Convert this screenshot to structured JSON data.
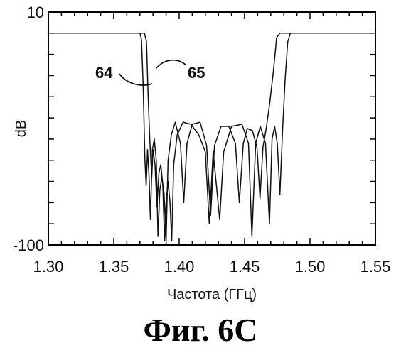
{
  "chart_data": {
    "type": "line",
    "title": "",
    "xlabel": "Частота (ГГц)",
    "ylabel": "dB",
    "xlim": [
      1.3,
      1.55
    ],
    "ylim": [
      -100,
      10
    ],
    "x_ticks": [
      "1.30",
      "1.35",
      "1.40",
      "1.45",
      "1.50",
      "1.55"
    ],
    "y_ticks": [
      "10",
      "-100"
    ],
    "grid": false,
    "annotations": [
      {
        "text": "64",
        "series": "64"
      },
      {
        "text": "65",
        "series": "65"
      }
    ],
    "series": [
      {
        "name": "64",
        "points": [
          [
            1.3,
            0
          ],
          [
            1.37,
            0
          ],
          [
            1.3712,
            -3
          ],
          [
            1.3725,
            -25
          ],
          [
            1.3738,
            -60
          ],
          [
            1.3748,
            -72
          ],
          [
            1.3758,
            -55
          ],
          [
            1.377,
            -68
          ],
          [
            1.378,
            -88
          ],
          [
            1.3795,
            -55
          ],
          [
            1.381,
            -50
          ],
          [
            1.3825,
            -60
          ],
          [
            1.3838,
            -96
          ],
          [
            1.3852,
            -74
          ],
          [
            1.3868,
            -68
          ],
          [
            1.3885,
            -76
          ],
          [
            1.39,
            -98
          ],
          [
            1.3915,
            -60
          ],
          [
            1.394,
            -48
          ],
          [
            1.397,
            -42
          ],
          [
            1.401,
            -52
          ],
          [
            1.4035,
            -80
          ],
          [
            1.406,
            -52
          ],
          [
            1.41,
            -43
          ],
          [
            1.416,
            -42
          ],
          [
            1.421,
            -53
          ],
          [
            1.424,
            -86
          ],
          [
            1.427,
            -53
          ],
          [
            1.432,
            -44
          ],
          [
            1.438,
            -44
          ],
          [
            1.443,
            -52
          ],
          [
            1.446,
            -80
          ],
          [
            1.449,
            -52
          ],
          [
            1.452,
            -45
          ],
          [
            1.456,
            -46
          ],
          [
            1.4595,
            -54
          ],
          [
            1.4618,
            -78
          ],
          [
            1.464,
            -54
          ],
          [
            1.4665,
            -45
          ],
          [
            1.469,
            -34
          ],
          [
            1.472,
            -18
          ],
          [
            1.4745,
            -2
          ],
          [
            1.477,
            0
          ],
          [
            1.55,
            0
          ]
        ]
      },
      {
        "name": "65",
        "points": [
          [
            1.3,
            0
          ],
          [
            1.3735,
            0
          ],
          [
            1.375,
            -4
          ],
          [
            1.3762,
            -28
          ],
          [
            1.3775,
            -50
          ],
          [
            1.379,
            -68
          ],
          [
            1.38,
            -55
          ],
          [
            1.3815,
            -62
          ],
          [
            1.383,
            -82
          ],
          [
            1.3845,
            -66
          ],
          [
            1.386,
            -62
          ],
          [
            1.3875,
            -72
          ],
          [
            1.3888,
            -98
          ],
          [
            1.39,
            -80
          ],
          [
            1.3915,
            -70
          ],
          [
            1.393,
            -80
          ],
          [
            1.3943,
            -98
          ],
          [
            1.3958,
            -62
          ],
          [
            1.3985,
            -48
          ],
          [
            1.403,
            -42
          ],
          [
            1.409,
            -43
          ],
          [
            1.415,
            -48
          ],
          [
            1.42,
            -56
          ],
          [
            1.423,
            -90
          ],
          [
            1.426,
            -56
          ],
          [
            1.431,
            -88
          ],
          [
            1.434,
            -56
          ],
          [
            1.44,
            -44
          ],
          [
            1.448,
            -43
          ],
          [
            1.453,
            -52
          ],
          [
            1.4556,
            -96
          ],
          [
            1.4585,
            -52
          ],
          [
            1.462,
            -44
          ],
          [
            1.466,
            -52
          ],
          [
            1.469,
            -90
          ],
          [
            1.471,
            -50
          ],
          [
            1.473,
            -44
          ],
          [
            1.475,
            -52
          ],
          [
            1.477,
            -76
          ],
          [
            1.479,
            -46
          ],
          [
            1.481,
            -22
          ],
          [
            1.483,
            -4
          ],
          [
            1.485,
            0
          ],
          [
            1.55,
            0
          ]
        ]
      }
    ]
  },
  "caption": "Фиг. 6С"
}
